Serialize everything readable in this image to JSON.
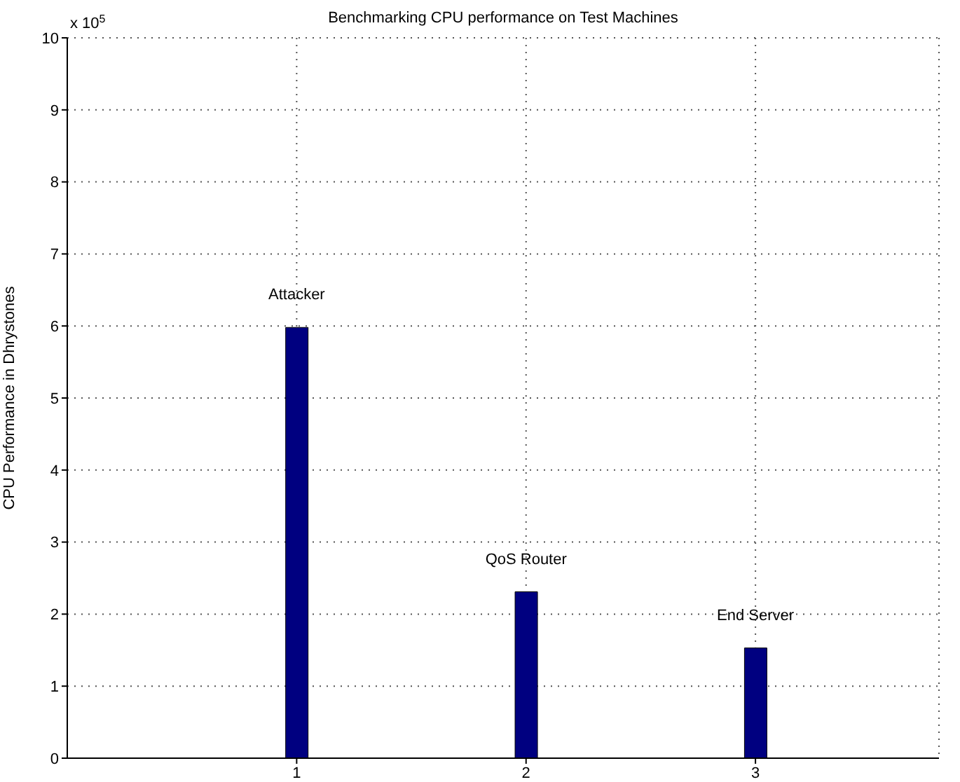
{
  "chart_data": {
    "type": "bar",
    "title": "Benchmarking CPU performance on Test Machines",
    "ylabel": "CPU Performance in Dhrystones",
    "x": [
      1,
      2,
      3
    ],
    "values": [
      5.98,
      2.31,
      1.53
    ],
    "color": "#000080",
    "xlim": [
      0,
      3.8
    ],
    "xticks": [
      1,
      2,
      3
    ],
    "ylim": [
      0,
      10
    ],
    "yticks": [
      0,
      1,
      2,
      3,
      4,
      5,
      6,
      7,
      8,
      9,
      10
    ],
    "grid": true,
    "annotations": [
      "x 10$^{5}$",
      {
        "text": "Attacker",
        "x": 1,
        "y": 5.98
      },
      {
        "text": "QoS Router",
        "x": 2,
        "y": 2.31
      },
      {
        "text": "End Server",
        "x": 3,
        "y": 1.53
      }
    ]
  }
}
